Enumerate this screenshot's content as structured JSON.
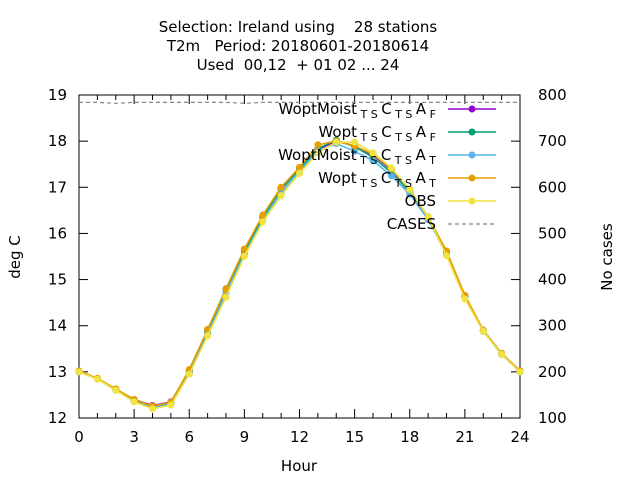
{
  "chart_data": {
    "type": "line",
    "title_lines": [
      "Selection: Ireland using    28 stations",
      "T2m   Period: 20180601-20180614",
      "Used  00,12  + 01 02 ... 24"
    ],
    "xlabel": "Hour",
    "ylabel": "deg C",
    "y2label": "No cases",
    "xlim": [
      0,
      24
    ],
    "ylim": [
      12,
      19
    ],
    "y2lim": [
      100,
      800
    ],
    "x_ticks": [
      0,
      3,
      6,
      9,
      12,
      15,
      18,
      21,
      24
    ],
    "y_ticks": [
      12,
      13,
      14,
      15,
      16,
      17,
      18,
      19
    ],
    "y2_ticks": [
      100,
      200,
      300,
      400,
      500,
      600,
      700,
      800
    ],
    "legend_position": "top-right",
    "x": [
      0,
      1,
      2,
      3,
      4,
      5,
      6,
      7,
      8,
      9,
      10,
      11,
      12,
      13,
      14,
      15,
      16,
      17,
      18,
      19,
      20,
      21,
      22,
      23,
      24
    ],
    "series": [
      {
        "name": "WoptMoist",
        "sub1": "T S",
        "mid": "C",
        "sub2": "T S",
        "tail": "A",
        "sub3": "F",
        "color": "#9400d3",
        "values": [
          13.0,
          12.85,
          12.62,
          12.4,
          12.27,
          12.35,
          13.02,
          13.9,
          14.8,
          15.65,
          16.38,
          16.98,
          17.42,
          17.82,
          18.0,
          17.9,
          17.7,
          17.38,
          16.95,
          16.35,
          15.6,
          14.65,
          13.9,
          13.4,
          13.02
        ]
      },
      {
        "name": "Wopt",
        "sub1": "T S",
        "mid": "C",
        "sub2": "T S",
        "tail": "A",
        "sub3": "F",
        "color": "#009e73",
        "values": [
          13.0,
          12.85,
          12.62,
          12.38,
          12.25,
          12.33,
          13.0,
          13.88,
          14.78,
          15.62,
          16.35,
          16.95,
          17.4,
          17.84,
          18.02,
          17.88,
          17.65,
          17.32,
          16.9,
          16.32,
          15.58,
          14.62,
          13.88,
          13.38,
          13.0
        ]
      },
      {
        "name": "WoptMoist",
        "sub1": "T S",
        "mid": "C",
        "sub2": "T S",
        "tail": "A",
        "sub3": "T",
        "color": "#56b4e9",
        "values": [
          13.0,
          12.85,
          12.6,
          12.36,
          12.22,
          12.3,
          12.98,
          13.82,
          14.7,
          15.55,
          16.28,
          16.88,
          17.35,
          17.78,
          17.95,
          17.78,
          17.58,
          17.25,
          16.85,
          16.3,
          15.55,
          14.6,
          13.88,
          13.38,
          13.0
        ]
      },
      {
        "name": "Wopt",
        "sub1": "T S",
        "mid": "C",
        "sub2": "T S",
        "tail": "A",
        "sub3": "T",
        "color": "#e69f00",
        "values": [
          13.02,
          12.86,
          12.63,
          12.4,
          12.26,
          12.34,
          13.05,
          13.92,
          14.8,
          15.66,
          16.4,
          17.0,
          17.43,
          17.92,
          18.0,
          17.9,
          17.72,
          17.4,
          16.95,
          16.36,
          15.62,
          14.66,
          13.9,
          13.4,
          13.02
        ]
      },
      {
        "name": "OBS",
        "color": "#f0e442",
        "values": [
          13.0,
          12.84,
          12.6,
          12.35,
          12.2,
          12.28,
          12.95,
          13.78,
          14.62,
          15.5,
          16.25,
          16.82,
          17.3,
          17.75,
          17.98,
          17.98,
          17.75,
          17.42,
          16.95,
          16.35,
          15.52,
          14.58,
          13.88,
          13.38,
          13.0
        ]
      }
    ],
    "cases": {
      "name": "CASES",
      "color": "#888888",
      "x": [
        0,
        1,
        2,
        3,
        4,
        5,
        6,
        7,
        8,
        9,
        10,
        11,
        12,
        13,
        14,
        15,
        16,
        17,
        18,
        19,
        20,
        21,
        22,
        23,
        24
      ],
      "values": [
        784,
        784,
        782,
        784,
        784,
        784,
        784,
        784,
        784,
        782,
        784,
        784,
        784,
        784,
        784,
        784,
        784,
        784,
        784,
        784,
        784,
        784,
        784,
        784,
        784
      ]
    }
  }
}
